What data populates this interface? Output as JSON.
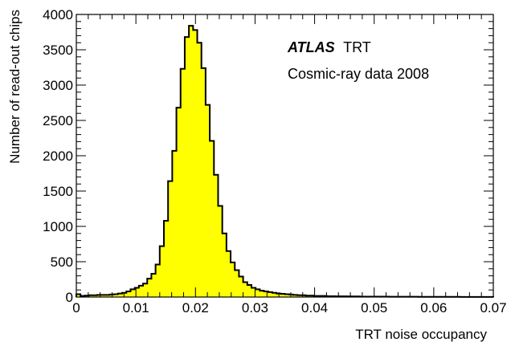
{
  "chart_data": {
    "type": "bar",
    "histogram": true,
    "xlabel": "TRT noise occupancy",
    "ylabel": "Number of read-out chips",
    "xlim": [
      0,
      0.07
    ],
    "ylim": [
      0,
      4000
    ],
    "x_ticks": [
      "0",
      "0.01",
      "0.02",
      "0.03",
      "0.04",
      "0.05",
      "0.06",
      "0.07"
    ],
    "x_tick_values": [
      0,
      0.01,
      0.02,
      0.03,
      0.04,
      0.05,
      0.06,
      0.07
    ],
    "y_ticks": [
      "0",
      "500",
      "1000",
      "1500",
      "2000",
      "2500",
      "3000",
      "3500",
      "4000"
    ],
    "y_tick_values": [
      0,
      500,
      1000,
      1500,
      2000,
      2500,
      3000,
      3500,
      4000
    ],
    "fill_color": "#ffff00",
    "edge_color": "#000000",
    "annotations": {
      "experiment": "ATLAS",
      "detector": "TRT",
      "dataset": "Cosmic-ray data 2008"
    },
    "bin_width": 0.0007,
    "bin_start": 0,
    "values": [
      40,
      15,
      20,
      25,
      25,
      30,
      30,
      30,
      35,
      40,
      50,
      60,
      80,
      110,
      130,
      160,
      190,
      260,
      330,
      460,
      720,
      1080,
      1640,
      2070,
      2680,
      3230,
      3680,
      3840,
      3780,
      3600,
      3240,
      2720,
      2210,
      1730,
      1290,
      900,
      650,
      490,
      380,
      290,
      210,
      170,
      130,
      110,
      90,
      80,
      70,
      60,
      50,
      45,
      40,
      35,
      30,
      25,
      25,
      20,
      20,
      15,
      15,
      15,
      12,
      12,
      10,
      10,
      10,
      8,
      8,
      8,
      6,
      6,
      6,
      5,
      5,
      5,
      5,
      4,
      4,
      4,
      4,
      4,
      4,
      4,
      3,
      3,
      3,
      3,
      3,
      3,
      3,
      3,
      3,
      3,
      2,
      2,
      2,
      2,
      2,
      2,
      2,
      2
    ]
  }
}
